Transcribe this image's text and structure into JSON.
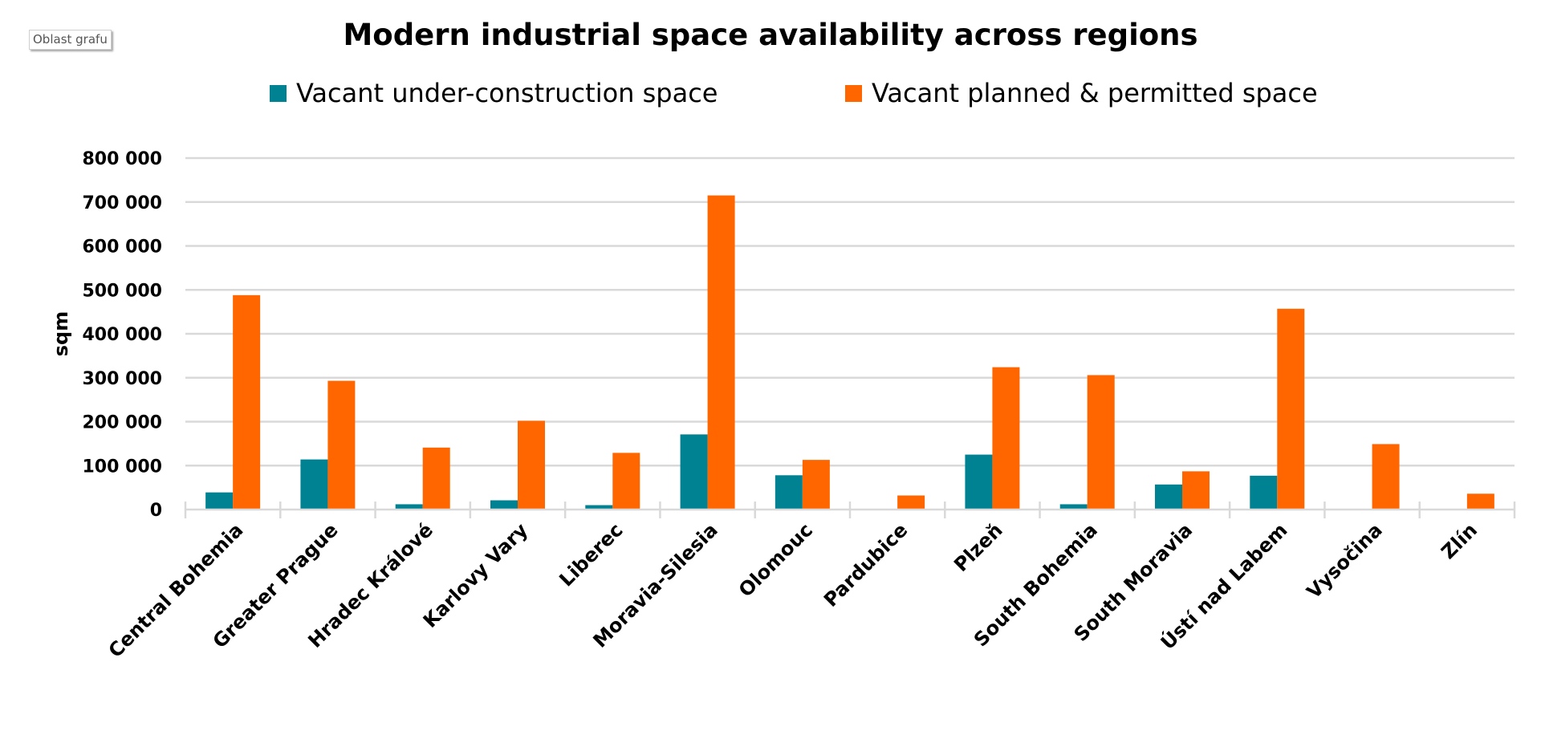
{
  "tooltip": {
    "label": "Oblast grafu"
  },
  "chart_data": {
    "type": "bar",
    "title": "Modern industrial space availability across regions",
    "xlabel": "",
    "ylabel": "sqm",
    "ylim": [
      0,
      800000
    ],
    "ytick_values": [
      0,
      100000,
      200000,
      300000,
      400000,
      500000,
      600000,
      700000,
      800000
    ],
    "ytick_labels": [
      "0",
      "100 000",
      "200 000",
      "300 000",
      "400 000",
      "500 000",
      "600 000",
      "700 000",
      "800 000"
    ],
    "grid": true,
    "legend_position": "top-center",
    "categories": [
      "Central Bohemia",
      "Greater Prague",
      "Hradec Králové",
      "Karlovy Vary",
      "Liberec",
      "Moravia-Silesia",
      "Olomouc",
      "Pardubice",
      "Plzeň",
      "South Bohemia",
      "South Moravia",
      "Ústí nad Labem",
      "Vysočina",
      "Zlín"
    ],
    "series": [
      {
        "name": "Vacant under-construction space",
        "color": "#008292",
        "values": [
          39000,
          114000,
          12000,
          21000,
          10000,
          171000,
          78000,
          0,
          125000,
          12000,
          57000,
          77000,
          0,
          0
        ]
      },
      {
        "name": "Vacant planned & permitted space",
        "color": "#FF6600",
        "values": [
          488000,
          293000,
          141000,
          202000,
          129000,
          715000,
          113000,
          32000,
          324000,
          306000,
          87000,
          457000,
          149000,
          36000
        ]
      }
    ]
  }
}
